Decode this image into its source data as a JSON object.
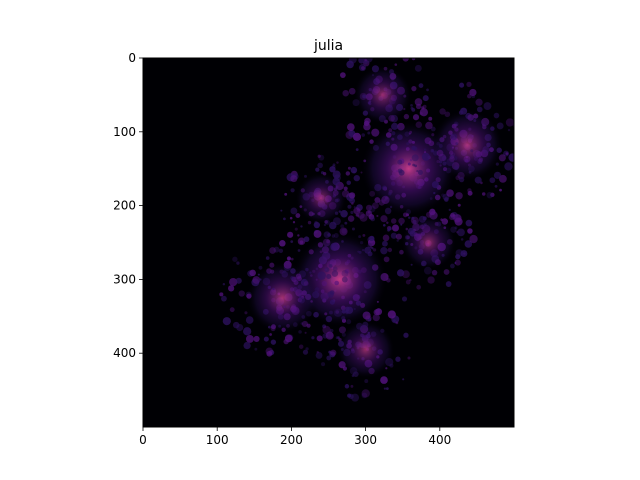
{
  "chart_data": {
    "type": "heatmap",
    "title": "julia",
    "xlabel": "",
    "ylabel": "",
    "xlim": [
      0,
      500
    ],
    "ylim": [
      500,
      0
    ],
    "xticks": [
      0,
      100,
      200,
      300,
      400
    ],
    "yticks": [
      0,
      100,
      200,
      300,
      400
    ],
    "colormap": "magma",
    "colors": {
      "background": "#000004",
      "dim_purple": "#2c115f",
      "purple": "#51127c",
      "magenta": "#8c2981"
    },
    "bright_centers": [
      {
        "x": 358,
        "y": 150,
        "intensity": 1.0
      },
      {
        "x": 265,
        "y": 300,
        "intensity": 1.0
      },
      {
        "x": 437,
        "y": 118,
        "intensity": 0.65
      },
      {
        "x": 188,
        "y": 325,
        "intensity": 0.65
      },
      {
        "x": 323,
        "y": 50,
        "intensity": 0.45
      },
      {
        "x": 300,
        "y": 395,
        "intensity": 0.45
      },
      {
        "x": 385,
        "y": 250,
        "intensity": 0.4
      },
      {
        "x": 240,
        "y": 190,
        "intensity": 0.35
      }
    ]
  }
}
